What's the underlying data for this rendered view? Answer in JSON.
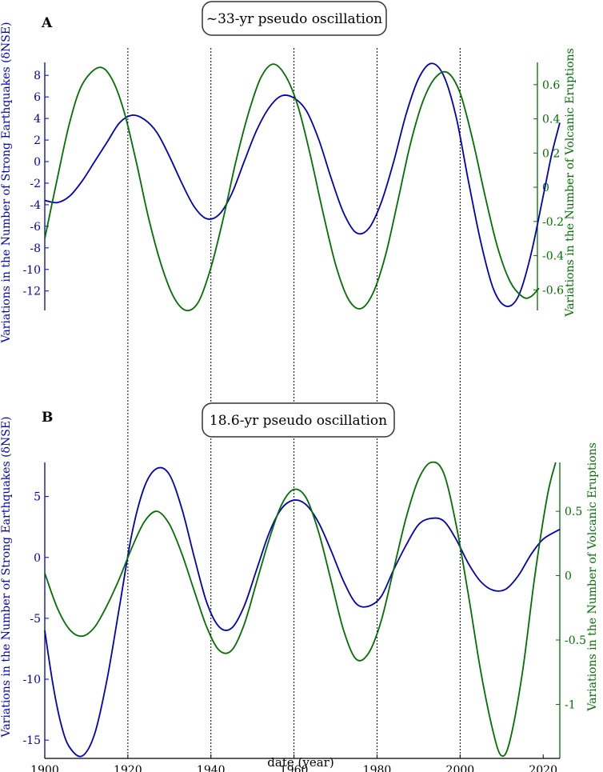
{
  "chart_data": [
    {
      "panel_label": "A",
      "title": "~33-yr pseudo oscillation",
      "type": "line",
      "x_range": [
        1900,
        2024
      ],
      "left_axis": {
        "label": "Variations in the Number of Strong Earthquakes (δNSE)",
        "ylim": [
          -13.8,
          9.2
        ],
        "ticks": [
          8,
          6,
          4,
          2,
          0,
          -2,
          -4,
          -6,
          -8,
          -10,
          -12
        ],
        "color": "#0000bb"
      },
      "right_axis": {
        "label": "Variations in the Number of Volcanic Eruptions",
        "ylim": [
          -0.72,
          0.73
        ],
        "ticks": [
          0.6,
          0.4,
          0.2,
          0,
          -0.2,
          -0.4,
          -0.6
        ],
        "tick_labels": [
          "0.6",
          "0.4",
          "0.2",
          "0",
          "-0.2",
          "-0.4",
          "-0.6"
        ],
        "color": "#007000"
      },
      "series": [
        {
          "axis": "left",
          "color": "#0000bb",
          "points": [
            [
              1900,
              -3.6
            ],
            [
              1903,
              -3.8
            ],
            [
              1906,
              -3.2
            ],
            [
              1909,
              -1.8
            ],
            [
              1912,
              0.0
            ],
            [
              1915,
              1.8
            ],
            [
              1918,
              3.6
            ],
            [
              1921,
              4.3
            ],
            [
              1924,
              3.9
            ],
            [
              1927,
              2.7
            ],
            [
              1930,
              0.5
            ],
            [
              1933,
              -2.0
            ],
            [
              1936,
              -4.2
            ],
            [
              1939,
              -5.3
            ],
            [
              1942,
              -4.9
            ],
            [
              1945,
              -3.0
            ],
            [
              1948,
              0.0
            ],
            [
              1951,
              2.9
            ],
            [
              1954,
              5.0
            ],
            [
              1957,
              6.1
            ],
            [
              1960,
              5.9
            ],
            [
              1963,
              4.7
            ],
            [
              1966,
              2.0
            ],
            [
              1969,
              -1.6
            ],
            [
              1972,
              -4.8
            ],
            [
              1975,
              -6.6
            ],
            [
              1978,
              -6.2
            ],
            [
              1981,
              -3.8
            ],
            [
              1984,
              0.0
            ],
            [
              1987,
              4.4
            ],
            [
              1990,
              7.7
            ],
            [
              1993,
              9.1
            ],
            [
              1996,
              8.0
            ],
            [
              1999,
              4.2
            ],
            [
              2002,
              -1.8
            ],
            [
              2005,
              -7.5
            ],
            [
              2008,
              -11.8
            ],
            [
              2011,
              -13.4
            ],
            [
              2014,
              -12.5
            ],
            [
              2017,
              -8.7
            ],
            [
              2020,
              -3.2
            ],
            [
              2022,
              0.6
            ],
            [
              2024,
              3.6
            ]
          ]
        },
        {
          "axis": "right",
          "color": "#007000",
          "points": [
            [
              1900,
              -0.3
            ],
            [
              1903,
              0.05
            ],
            [
              1906,
              0.38
            ],
            [
              1909,
              0.6
            ],
            [
              1913,
              0.7
            ],
            [
              1916,
              0.64
            ],
            [
              1919,
              0.45
            ],
            [
              1922,
              0.15
            ],
            [
              1925,
              -0.18
            ],
            [
              1928,
              -0.45
            ],
            [
              1931,
              -0.64
            ],
            [
              1934,
              -0.72
            ],
            [
              1937,
              -0.67
            ],
            [
              1940,
              -0.47
            ],
            [
              1943,
              -0.18
            ],
            [
              1946,
              0.15
            ],
            [
              1949,
              0.43
            ],
            [
              1952,
              0.64
            ],
            [
              1955,
              0.72
            ],
            [
              1958,
              0.65
            ],
            [
              1961,
              0.47
            ],
            [
              1964,
              0.18
            ],
            [
              1967,
              -0.15
            ],
            [
              1970,
              -0.45
            ],
            [
              1973,
              -0.65
            ],
            [
              1976,
              -0.71
            ],
            [
              1979,
              -0.62
            ],
            [
              1982,
              -0.4
            ],
            [
              1985,
              -0.08
            ],
            [
              1988,
              0.25
            ],
            [
              1991,
              0.5
            ],
            [
              1994,
              0.64
            ],
            [
              1997,
              0.67
            ],
            [
              2000,
              0.55
            ],
            [
              2003,
              0.28
            ],
            [
              2006,
              -0.05
            ],
            [
              2009,
              -0.35
            ],
            [
              2012,
              -0.55
            ],
            [
              2015,
              -0.64
            ],
            [
              2017,
              -0.64
            ],
            [
              2019,
              -0.59
            ]
          ]
        }
      ]
    },
    {
      "panel_label": "B",
      "title": "18.6-yr pseudo oscillation",
      "type": "line",
      "x_range": [
        1900,
        2024
      ],
      "xlabel": "date (year)",
      "xticks": [
        1900,
        1920,
        1940,
        1960,
        1980,
        2000,
        2020
      ],
      "left_axis": {
        "label": "Variations in the Number of Strong Earthquakes (δNSE)",
        "ylim": [
          -16.5,
          7.8
        ],
        "ticks": [
          5,
          0,
          -5,
          -10,
          -15
        ],
        "color": "#0000bb"
      },
      "right_axis": {
        "label": "Variations in the Number of Volcanic Eruptions",
        "ylim": [
          -1.42,
          0.88
        ],
        "ticks": [
          0.5,
          0,
          -0.5,
          -1
        ],
        "tick_labels": [
          "0.5",
          "0",
          "-0.5",
          "-1"
        ],
        "color": "#007000"
      },
      "series": [
        {
          "axis": "left",
          "color": "#0000bb",
          "points": [
            [
              1900,
              -6.0
            ],
            [
              1902,
              -10.5
            ],
            [
              1904,
              -13.8
            ],
            [
              1906,
              -15.6
            ],
            [
              1909,
              -16.3
            ],
            [
              1912,
              -14.5
            ],
            [
              1915,
              -10.0
            ],
            [
              1918,
              -4.0
            ],
            [
              1921,
              2.0
            ],
            [
              1924,
              5.8
            ],
            [
              1927,
              7.3
            ],
            [
              1930,
              6.8
            ],
            [
              1933,
              4.0
            ],
            [
              1936,
              0.0
            ],
            [
              1939,
              -3.7
            ],
            [
              1942,
              -5.7
            ],
            [
              1945,
              -5.8
            ],
            [
              1948,
              -4.0
            ],
            [
              1951,
              -1.0
            ],
            [
              1954,
              2.0
            ],
            [
              1957,
              4.0
            ],
            [
              1960,
              4.7
            ],
            [
              1963,
              4.3
            ],
            [
              1966,
              2.8
            ],
            [
              1969,
              0.5
            ],
            [
              1972,
              -2.0
            ],
            [
              1975,
              -3.8
            ],
            [
              1978,
              -4.0
            ],
            [
              1981,
              -3.2
            ],
            [
              1984,
              -1.0
            ],
            [
              1987,
              1.0
            ],
            [
              1990,
              2.7
            ],
            [
              1993,
              3.2
            ],
            [
              1996,
              3.0
            ],
            [
              1999,
              1.5
            ],
            [
              2002,
              -0.5
            ],
            [
              2005,
              -2.0
            ],
            [
              2008,
              -2.7
            ],
            [
              2011,
              -2.6
            ],
            [
              2014,
              -1.5
            ],
            [
              2017,
              0.2
            ],
            [
              2020,
              1.5
            ],
            [
              2024,
              2.3
            ]
          ]
        },
        {
          "axis": "right",
          "color": "#007000",
          "points": [
            [
              1900,
              0.02
            ],
            [
              1903,
              -0.25
            ],
            [
              1906,
              -0.42
            ],
            [
              1909,
              -0.47
            ],
            [
              1912,
              -0.4
            ],
            [
              1915,
              -0.23
            ],
            [
              1918,
              -0.02
            ],
            [
              1921,
              0.22
            ],
            [
              1924,
              0.42
            ],
            [
              1927,
              0.5
            ],
            [
              1930,
              0.4
            ],
            [
              1933,
              0.17
            ],
            [
              1936,
              -0.12
            ],
            [
              1939,
              -0.4
            ],
            [
              1942,
              -0.58
            ],
            [
              1945,
              -0.58
            ],
            [
              1948,
              -0.38
            ],
            [
              1951,
              -0.05
            ],
            [
              1954,
              0.28
            ],
            [
              1957,
              0.55
            ],
            [
              1960,
              0.67
            ],
            [
              1963,
              0.6
            ],
            [
              1966,
              0.33
            ],
            [
              1969,
              -0.05
            ],
            [
              1972,
              -0.43
            ],
            [
              1975,
              -0.65
            ],
            [
              1978,
              -0.6
            ],
            [
              1981,
              -0.35
            ],
            [
              1984,
              0.05
            ],
            [
              1987,
              0.45
            ],
            [
              1990,
              0.75
            ],
            [
              1993,
              0.88
            ],
            [
              1996,
              0.8
            ],
            [
              1999,
              0.4
            ],
            [
              2002,
              -0.15
            ],
            [
              2005,
              -0.75
            ],
            [
              2008,
              -1.22
            ],
            [
              2010,
              -1.4
            ],
            [
              2012,
              -1.28
            ],
            [
              2015,
              -0.75
            ],
            [
              2018,
              0.0
            ],
            [
              2021,
              0.62
            ],
            [
              2023,
              0.88
            ]
          ]
        }
      ]
    }
  ],
  "dotted_lines_x": [
    1920,
    1940,
    1960,
    1980,
    2000
  ]
}
